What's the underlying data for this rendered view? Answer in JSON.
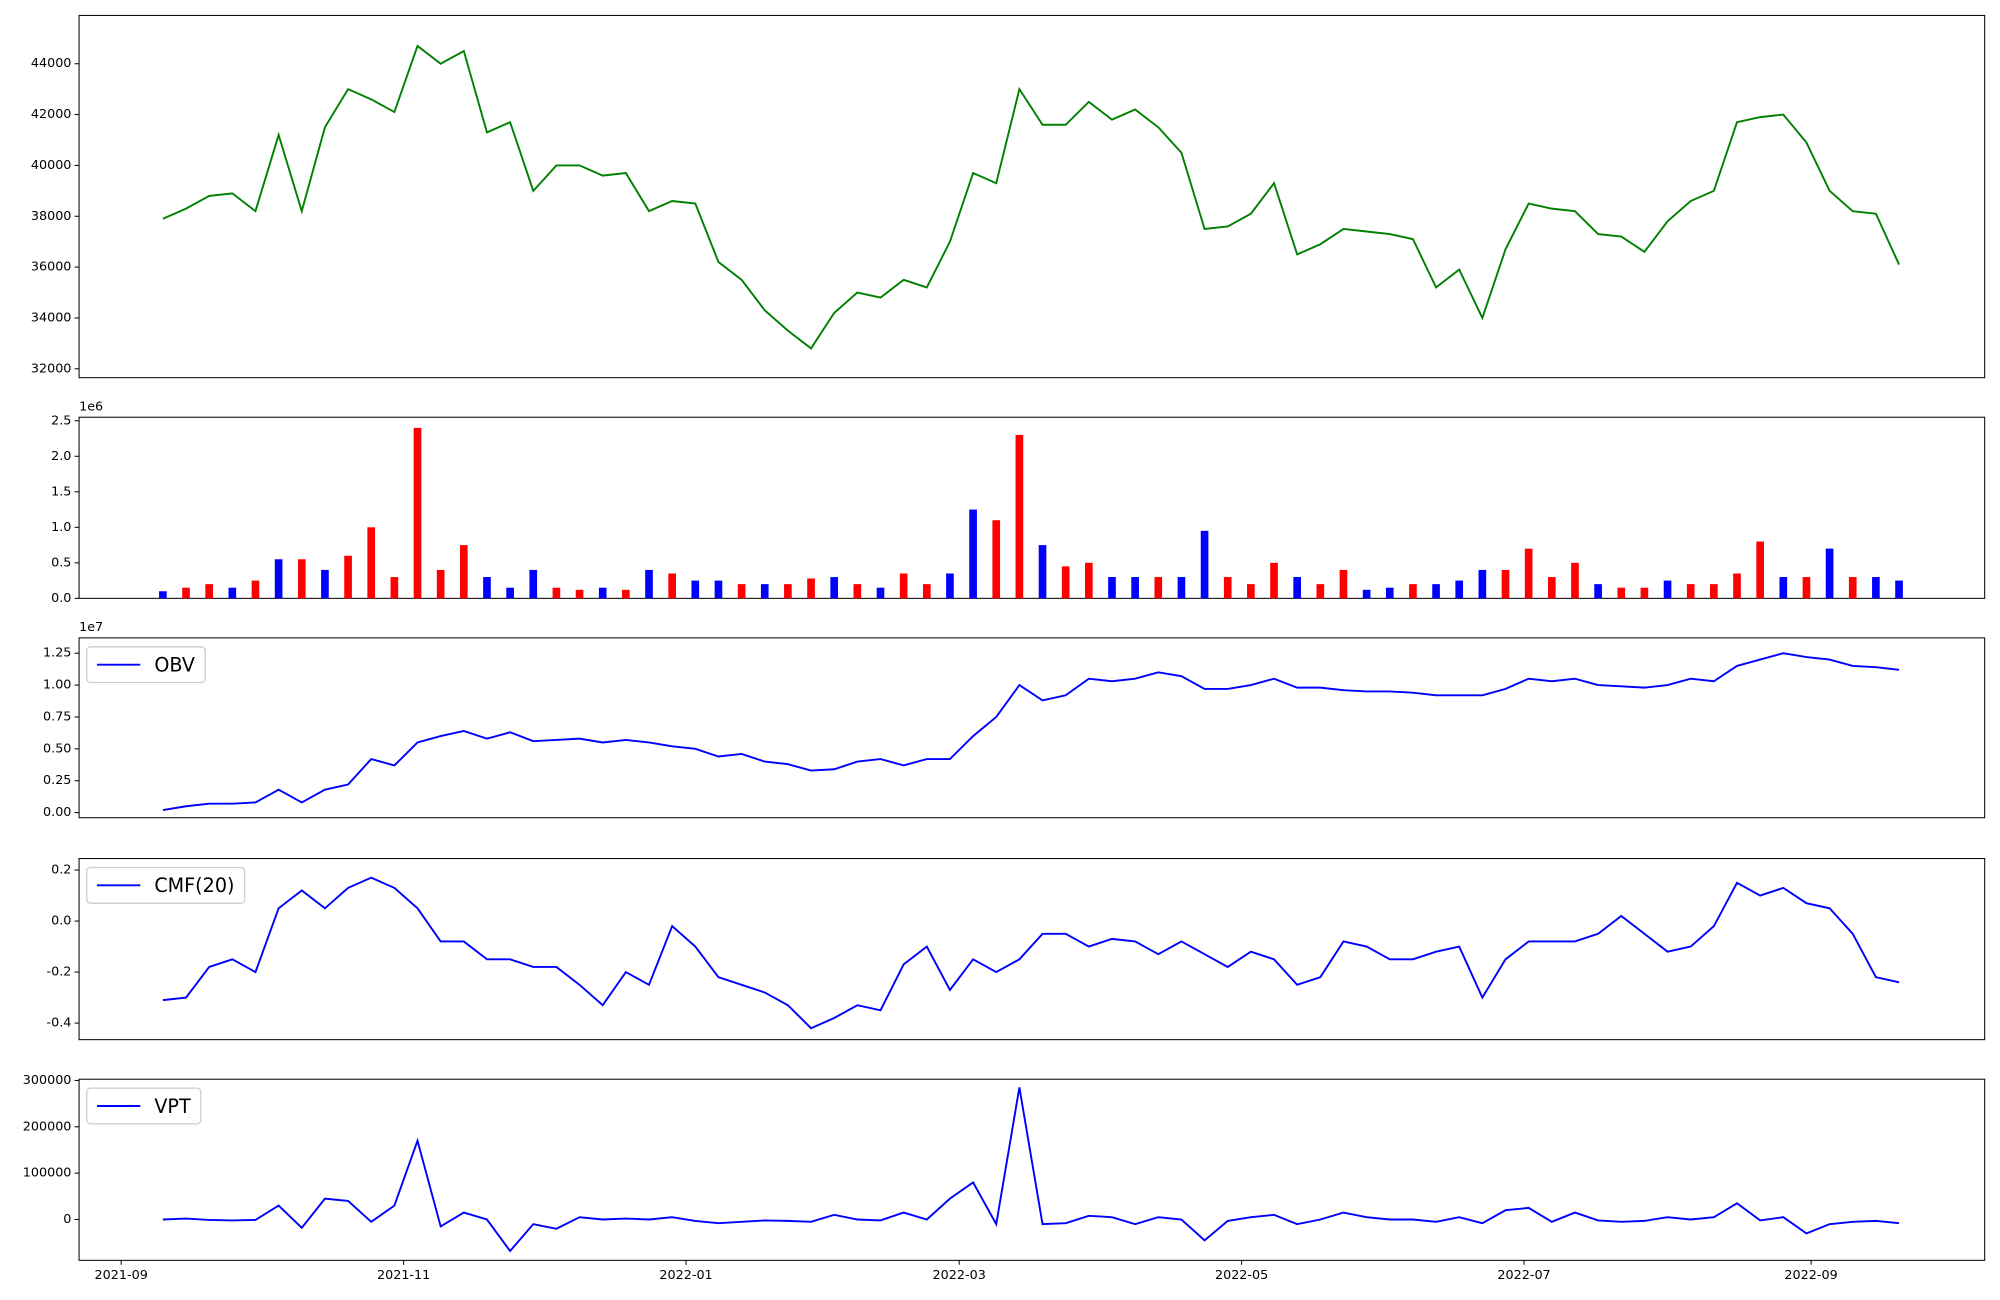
{
  "chart_data": [
    {
      "type": "line",
      "x": [
        9,
        14,
        19,
        24,
        29,
        34,
        39,
        44,
        49,
        54,
        59,
        64,
        69,
        74,
        79,
        84,
        89,
        94,
        99,
        104,
        109,
        114,
        119,
        124,
        129,
        134,
        139,
        144,
        149,
        154,
        159,
        164,
        169,
        174,
        179,
        184,
        189,
        194,
        199,
        204,
        209,
        214,
        219,
        224,
        229,
        234,
        239,
        244,
        249,
        254,
        259,
        264,
        269,
        274,
        279,
        284,
        289,
        294,
        299,
        304,
        309,
        314,
        319,
        324,
        329,
        334,
        339,
        344,
        349,
        354,
        359,
        364,
        369,
        374,
        379,
        384
      ],
      "series": [
        {
          "color": "#008000",
          "values": [
            37900,
            38300,
            38800,
            38900,
            38200,
            41200,
            38200,
            41500,
            43000,
            42600,
            42100,
            44700,
            44000,
            44500,
            41300,
            41700,
            39000,
            40000,
            40000,
            39600,
            39700,
            38200,
            38600,
            38500,
            36200,
            35500,
            34300,
            33500,
            32800,
            34200,
            35000,
            34800,
            35500,
            35200,
            37000,
            39700,
            39300,
            43000,
            41600,
            41600,
            42500,
            41800,
            42200,
            41500,
            40500,
            37500,
            37600,
            38100,
            39300,
            36500,
            36900,
            37500,
            37400,
            37300,
            37100,
            35200,
            35900,
            34000,
            36700,
            38500,
            38300,
            38200,
            37300,
            37200,
            36600,
            37800,
            38600,
            39000,
            41700,
            41900,
            42000,
            40900,
            39000,
            38200,
            38100,
            36100
          ]
        }
      ],
      "xlim": [
        -9.1,
        402.5
      ],
      "ylim": [
        31650,
        45900
      ],
      "yticks": [
        32000,
        34000,
        36000,
        38000,
        40000,
        42000,
        44000
      ]
    },
    {
      "type": "bar",
      "x": [
        9,
        14,
        19,
        24,
        29,
        34,
        39,
        44,
        49,
        54,
        59,
        64,
        69,
        74,
        79,
        84,
        89,
        94,
        99,
        104,
        109,
        114,
        119,
        124,
        129,
        134,
        139,
        144,
        149,
        154,
        159,
        164,
        169,
        174,
        179,
        184,
        189,
        194,
        199,
        204,
        209,
        214,
        219,
        224,
        229,
        234,
        239,
        244,
        249,
        254,
        259,
        264,
        269,
        274,
        279,
        284,
        289,
        294,
        299,
        304,
        309,
        314,
        319,
        324,
        329,
        334,
        339,
        344,
        349,
        354,
        359,
        364,
        369,
        374,
        379,
        384
      ],
      "values": [
        0.1,
        0.15,
        0.2,
        0.15,
        0.25,
        0.55,
        0.55,
        0.4,
        0.6,
        1.0,
        0.3,
        2.4,
        0.4,
        0.75,
        0.3,
        0.15,
        0.4,
        0.15,
        0.12,
        0.15,
        0.12,
        0.4,
        0.35,
        0.25,
        0.25,
        0.2,
        0.2,
        0.2,
        0.28,
        0.3,
        0.2,
        0.15,
        0.35,
        0.2,
        0.35,
        1.25,
        1.1,
        2.3,
        0.75,
        0.45,
        0.5,
        0.3,
        0.3,
        0.3,
        0.3,
        0.95,
        0.3,
        0.2,
        0.5,
        0.3,
        0.2,
        0.4,
        0.12,
        0.15,
        0.2,
        0.2,
        0.25,
        0.4,
        0.4,
        0.7,
        0.3,
        0.5,
        0.2,
        0.15,
        0.15,
        0.25,
        0.2,
        0.2,
        0.35,
        0.8,
        0.3,
        0.3,
        0.7,
        0.3,
        0.3,
        0.25
      ],
      "colors": [
        "#0000ff",
        "#ff0000",
        "#ff0000",
        "#0000ff",
        "#ff0000",
        "#0000ff",
        "#ff0000",
        "#0000ff",
        "#ff0000",
        "#ff0000",
        "#ff0000",
        "#ff0000",
        "#ff0000",
        "#ff0000",
        "#0000ff",
        "#0000ff",
        "#0000ff",
        "#ff0000",
        "#ff0000",
        "#0000ff",
        "#ff0000",
        "#0000ff",
        "#ff0000",
        "#0000ff",
        "#0000ff",
        "#ff0000",
        "#0000ff",
        "#ff0000",
        "#ff0000",
        "#0000ff",
        "#ff0000",
        "#0000ff",
        "#ff0000",
        "#ff0000",
        "#0000ff",
        "#0000ff",
        "#ff0000",
        "#ff0000",
        "#0000ff",
        "#ff0000",
        "#ff0000",
        "#0000ff",
        "#0000ff",
        "#ff0000",
        "#0000ff",
        "#0000ff",
        "#ff0000",
        "#ff0000",
        "#ff0000",
        "#0000ff",
        "#ff0000",
        "#ff0000",
        "#0000ff",
        "#0000ff",
        "#ff0000",
        "#0000ff",
        "#0000ff",
        "#0000ff",
        "#ff0000",
        "#ff0000",
        "#ff0000",
        "#ff0000",
        "#0000ff",
        "#ff0000",
        "#ff0000",
        "#0000ff",
        "#ff0000",
        "#ff0000",
        "#ff0000",
        "#ff0000",
        "#0000ff",
        "#ff0000",
        "#0000ff",
        "#ff0000",
        "#0000ff",
        "#0000ff"
      ],
      "xlim": [
        -9.1,
        402.5
      ],
      "ylim": [
        0,
        2.55
      ],
      "y_offset_label": "1e6",
      "yticks": [
        {
          "value": 0,
          "label": "0.0"
        },
        0.5,
        {
          "value": 1,
          "label": "1.0"
        },
        1.5,
        {
          "value": 2,
          "label": "2.0"
        },
        2.5
      ]
    },
    {
      "type": "line",
      "legend": "upper left",
      "x": [
        9,
        14,
        19,
        24,
        29,
        34,
        39,
        44,
        49,
        54,
        59,
        64,
        69,
        74,
        79,
        84,
        89,
        94,
        99,
        104,
        109,
        114,
        119,
        124,
        129,
        134,
        139,
        144,
        149,
        154,
        159,
        164,
        169,
        174,
        179,
        184,
        189,
        194,
        199,
        204,
        209,
        214,
        219,
        224,
        229,
        234,
        239,
        244,
        249,
        254,
        259,
        264,
        269,
        274,
        279,
        284,
        289,
        294,
        299,
        304,
        309,
        314,
        319,
        324,
        329,
        334,
        339,
        344,
        349,
        354,
        359,
        364,
        369,
        374,
        379,
        384
      ],
      "series": [
        {
          "name": "OBV",
          "color": "#0000ff",
          "values": [
            0.02,
            0.05,
            0.07,
            0.07,
            0.08,
            0.18,
            0.08,
            0.18,
            0.22,
            0.42,
            0.37,
            0.55,
            0.6,
            0.64,
            0.58,
            0.63,
            0.56,
            0.57,
            0.58,
            0.55,
            0.57,
            0.55,
            0.52,
            0.5,
            0.44,
            0.46,
            0.4,
            0.38,
            0.33,
            0.34,
            0.4,
            0.42,
            0.37,
            0.42,
            0.42,
            0.6,
            0.75,
            1.0,
            0.88,
            0.92,
            1.05,
            1.03,
            1.05,
            1.1,
            1.07,
            0.97,
            0.97,
            1.0,
            1.05,
            0.98,
            0.98,
            0.96,
            0.95,
            0.95,
            0.94,
            0.92,
            0.92,
            0.92,
            0.97,
            1.05,
            1.03,
            1.05,
            1.0,
            0.99,
            0.98,
            1.0,
            1.05,
            1.03,
            1.15,
            1.2,
            1.25,
            1.22,
            1.2,
            1.15,
            1.14,
            1.12
          ]
        }
      ],
      "xlim": [
        -9.1,
        402.5
      ],
      "ylim": [
        -0.04,
        1.37
      ],
      "y_offset_label": "1e7",
      "yticks": [
        {
          "value": 0,
          "label": "0.00"
        },
        0.25,
        {
          "value": 0.5,
          "label": "0.50"
        },
        0.75,
        {
          "value": 1,
          "label": "1.00"
        },
        1.25
      ]
    },
    {
      "type": "line",
      "legend": "upper left",
      "x": [
        9,
        14,
        19,
        24,
        29,
        34,
        39,
        44,
        49,
        54,
        59,
        64,
        69,
        74,
        79,
        84,
        89,
        94,
        99,
        104,
        109,
        114,
        119,
        124,
        129,
        134,
        139,
        144,
        149,
        154,
        159,
        164,
        169,
        174,
        179,
        184,
        189,
        194,
        199,
        204,
        209,
        214,
        219,
        224,
        229,
        234,
        239,
        244,
        249,
        254,
        259,
        264,
        269,
        274,
        279,
        284,
        289,
        294,
        299,
        304,
        309,
        314,
        319,
        324,
        329,
        334,
        339,
        344,
        349,
        354,
        359,
        364,
        369,
        374,
        379,
        384
      ],
      "series": [
        {
          "name": "CMF(20)",
          "color": "#0000ff",
          "values": [
            -0.31,
            -0.3,
            -0.18,
            -0.15,
            -0.2,
            0.05,
            0.12,
            0.05,
            0.13,
            0.17,
            0.13,
            0.05,
            -0.08,
            -0.08,
            -0.15,
            -0.15,
            -0.18,
            -0.18,
            -0.25,
            -0.33,
            -0.2,
            -0.25,
            -0.02,
            -0.1,
            -0.22,
            -0.25,
            -0.28,
            -0.33,
            -0.42,
            -0.38,
            -0.33,
            -0.35,
            -0.17,
            -0.1,
            -0.27,
            -0.15,
            -0.2,
            -0.15,
            -0.05,
            -0.05,
            -0.1,
            -0.07,
            -0.08,
            -0.13,
            -0.08,
            -0.13,
            -0.18,
            -0.12,
            -0.15,
            -0.25,
            -0.22,
            -0.08,
            -0.1,
            -0.15,
            -0.15,
            -0.12,
            -0.1,
            -0.3,
            -0.15,
            -0.08,
            -0.08,
            -0.08,
            -0.05,
            0.02,
            -0.05,
            -0.12,
            -0.1,
            -0.02,
            0.15,
            0.1,
            0.13,
            0.07,
            0.05,
            -0.05,
            -0.22,
            -0.24
          ]
        }
      ],
      "xlim": [
        -9.1,
        402.5
      ],
      "ylim": [
        -0.465,
        0.245
      ],
      "yticks": [
        -0.4,
        -0.2,
        {
          "value": 0,
          "label": "0.0"
        },
        0.2
      ]
    },
    {
      "type": "line",
      "legend": "upper left",
      "x": [
        9,
        14,
        19,
        24,
        29,
        34,
        39,
        44,
        49,
        54,
        59,
        64,
        69,
        74,
        79,
        84,
        89,
        94,
        99,
        104,
        109,
        114,
        119,
        124,
        129,
        134,
        139,
        144,
        149,
        154,
        159,
        164,
        169,
        174,
        179,
        184,
        189,
        194,
        199,
        204,
        209,
        214,
        219,
        224,
        229,
        234,
        239,
        244,
        249,
        254,
        259,
        264,
        269,
        274,
        279,
        284,
        289,
        294,
        299,
        304,
        309,
        314,
        319,
        324,
        329,
        334,
        339,
        344,
        349,
        354,
        359,
        364,
        369,
        374,
        379,
        384
      ],
      "series": [
        {
          "name": "VPT",
          "color": "#0000ff",
          "values": [
            0,
            2000,
            -1000,
            -2000,
            -1000,
            30000,
            -18000,
            45000,
            40000,
            -5000,
            30000,
            170000,
            -15000,
            15000,
            0,
            -68000,
            -10000,
            -20000,
            5000,
            0,
            2000,
            0,
            5000,
            -3000,
            -8000,
            -5000,
            -2000,
            -3000,
            -5000,
            10000,
            0,
            -2000,
            15000,
            0,
            45000,
            80000,
            -10000,
            285000,
            -10000,
            -8000,
            8000,
            5000,
            -10000,
            5000,
            0,
            -45000,
            -3000,
            5000,
            10000,
            -10000,
            0,
            15000,
            5000,
            0,
            0,
            -5000,
            5000,
            -8000,
            20000,
            25000,
            -5000,
            15000,
            -2000,
            -5000,
            -3000,
            5000,
            0,
            5000,
            35000,
            -2000,
            5000,
            -30000,
            -10000,
            -5000,
            -3000,
            -8000
          ]
        }
      ],
      "xlim": [
        -9.1,
        402.5
      ],
      "ylim": [
        -88100,
        302700
      ],
      "yticks": [
        0,
        100000,
        200000,
        300000
      ],
      "xticks": [
        {
          "value": 0,
          "label": "2021-09"
        },
        {
          "value": 61,
          "label": "2021-11"
        },
        {
          "value": 122,
          "label": "2022-01"
        },
        {
          "value": 181,
          "label": "2022-03"
        },
        {
          "value": 242,
          "label": "2022-05"
        },
        {
          "value": 303,
          "label": "2022-07"
        },
        {
          "value": 365,
          "label": "2022-09"
        }
      ]
    }
  ]
}
